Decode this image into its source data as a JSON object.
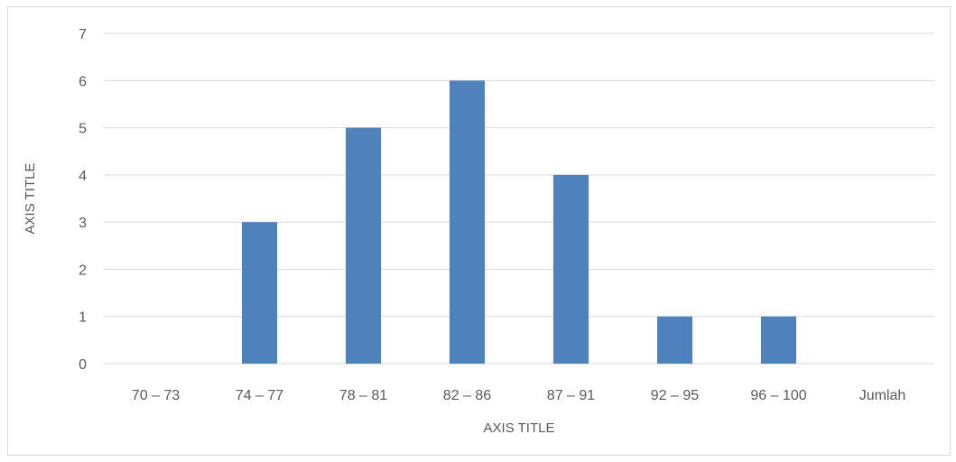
{
  "chart_data": {
    "type": "bar",
    "categories": [
      "70 – 73",
      "74 – 77",
      "78 – 81",
      "82 – 86",
      "87 – 91",
      "92 – 95",
      "96 – 100",
      "Jumlah"
    ],
    "values": [
      0,
      3,
      5,
      6,
      4,
      1,
      1,
      0
    ],
    "title": "",
    "xlabel": "AXIS TITLE",
    "ylabel": "AXIS TITLE",
    "ylim": [
      0,
      7
    ],
    "yticks": [
      0,
      1,
      2,
      3,
      4,
      5,
      6,
      7
    ],
    "grid": true,
    "legend": "none",
    "bar_color": "#4f81bd",
    "grid_color": "#d9d9d9"
  }
}
